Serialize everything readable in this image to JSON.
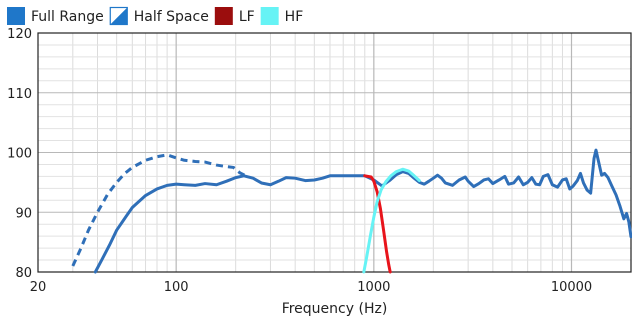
{
  "chart_data": {
    "type": "line",
    "xlabel": "Frequency (Hz)",
    "ylabel": "",
    "xscale": "log",
    "xlim": [
      20,
      20000
    ],
    "ylim": [
      80,
      120
    ],
    "y_ticks": [
      80,
      90,
      100,
      110,
      120
    ],
    "x_tick_labels": [
      {
        "value": 20,
        "label": "20"
      },
      {
        "value": 100,
        "label": "100"
      },
      {
        "value": 1000,
        "label": "1000"
      },
      {
        "value": 10000,
        "label": "10000"
      }
    ],
    "grid": true,
    "legend_position": "top-left",
    "legend": [
      {
        "name": "Full Range",
        "color": "#1f77c9",
        "swatch": "solid"
      },
      {
        "name": "Half Space",
        "color": "#1f77c9",
        "swatch": "half"
      },
      {
        "name": "LF",
        "color": "#9b0d0d",
        "swatch": "solid"
      },
      {
        "name": "HF",
        "color": "#66f3f5",
        "swatch": "solid"
      }
    ],
    "series": [
      {
        "name": "Half Space",
        "color": "#2f6fb8",
        "dashed": true,
        "points": [
          [
            30,
            81
          ],
          [
            33,
            84
          ],
          [
            36,
            87
          ],
          [
            40,
            90
          ],
          [
            45,
            93
          ],
          [
            50,
            95
          ],
          [
            55,
            96.5
          ],
          [
            60,
            97.5
          ],
          [
            70,
            98.7
          ],
          [
            80,
            99.3
          ],
          [
            90,
            99.6
          ],
          [
            100,
            99.1
          ],
          [
            110,
            98.7
          ],
          [
            125,
            98.5
          ],
          [
            140,
            98.4
          ],
          [
            160,
            97.9
          ],
          [
            175,
            97.7
          ],
          [
            195,
            97.5
          ],
          [
            210,
            96.6
          ],
          [
            225,
            96.1
          ]
        ]
      },
      {
        "name": "Full Range",
        "color": "#2f6fb8",
        "dashed": false,
        "points": [
          [
            39,
            80
          ],
          [
            42,
            82
          ],
          [
            46,
            84.5
          ],
          [
            50,
            87
          ],
          [
            55,
            89
          ],
          [
            60,
            90.8
          ],
          [
            70,
            92.8
          ],
          [
            80,
            93.9
          ],
          [
            90,
            94.5
          ],
          [
            100,
            94.7
          ],
          [
            110,
            94.6
          ],
          [
            125,
            94.5
          ],
          [
            140,
            94.8
          ],
          [
            160,
            94.6
          ],
          [
            180,
            95.2
          ],
          [
            200,
            95.8
          ],
          [
            220,
            96.1
          ],
          [
            245,
            95.7
          ],
          [
            270,
            94.9
          ],
          [
            300,
            94.6
          ],
          [
            330,
            95.2
          ],
          [
            360,
            95.8
          ],
          [
            400,
            95.7
          ],
          [
            450,
            95.3
          ],
          [
            500,
            95.4
          ],
          [
            550,
            95.7
          ],
          [
            600,
            96.1
          ],
          [
            700,
            96.1
          ],
          [
            800,
            96.1
          ],
          [
            900,
            96.1
          ],
          [
            1000,
            95.4
          ],
          [
            1100,
            94.4
          ],
          [
            1200,
            95.3
          ],
          [
            1300,
            96.3
          ],
          [
            1400,
            96.8
          ],
          [
            1500,
            96.5
          ],
          [
            1600,
            95.7
          ],
          [
            1700,
            95.0
          ],
          [
            1800,
            94.7
          ],
          [
            1900,
            95.2
          ],
          [
            2000,
            95.7
          ],
          [
            2100,
            96.2
          ],
          [
            2200,
            95.7
          ],
          [
            2300,
            94.9
          ],
          [
            2500,
            94.5
          ],
          [
            2700,
            95.4
          ],
          [
            2900,
            95.9
          ],
          [
            3000,
            95.2
          ],
          [
            3200,
            94.3
          ],
          [
            3400,
            94.8
          ],
          [
            3600,
            95.4
          ],
          [
            3800,
            95.6
          ],
          [
            4000,
            94.8
          ],
          [
            4300,
            95.4
          ],
          [
            4600,
            96.0
          ],
          [
            4800,
            94.7
          ],
          [
            5100,
            94.9
          ],
          [
            5400,
            95.9
          ],
          [
            5700,
            94.6
          ],
          [
            6000,
            95.0
          ],
          [
            6300,
            95.8
          ],
          [
            6600,
            94.7
          ],
          [
            6900,
            94.6
          ],
          [
            7200,
            96.0
          ],
          [
            7600,
            96.3
          ],
          [
            8000,
            94.6
          ],
          [
            8500,
            94.2
          ],
          [
            9000,
            95.4
          ],
          [
            9400,
            95.6
          ],
          [
            9800,
            93.9
          ],
          [
            10200,
            94.4
          ],
          [
            10700,
            95.3
          ],
          [
            11100,
            96.5
          ],
          [
            11500,
            94.9
          ],
          [
            12000,
            93.7
          ],
          [
            12500,
            93.2
          ],
          [
            13000,
            99.0
          ],
          [
            13300,
            100.4
          ],
          [
            13700,
            98.5
          ],
          [
            14200,
            96.2
          ],
          [
            14700,
            96.5
          ],
          [
            15300,
            95.8
          ],
          [
            16000,
            94.4
          ],
          [
            16800,
            92.9
          ],
          [
            17600,
            91.0
          ],
          [
            18400,
            88.9
          ],
          [
            19000,
            89.8
          ],
          [
            19500,
            88.4
          ],
          [
            20000,
            85.9
          ]
        ]
      },
      {
        "name": "LF",
        "color": "#e8141b",
        "dashed": false,
        "points": [
          [
            900,
            96.1
          ],
          [
            970,
            95.9
          ],
          [
            1000,
            95.2
          ],
          [
            1040,
            93.4
          ],
          [
            1080,
            90.6
          ],
          [
            1120,
            87.0
          ],
          [
            1160,
            83.4
          ],
          [
            1190,
            81.2
          ],
          [
            1210,
            80.0
          ]
        ]
      },
      {
        "name": "HF",
        "color": "#66f3f5",
        "dashed": false,
        "points": [
          [
            890,
            80.0
          ],
          [
            920,
            82.5
          ],
          [
            960,
            86.0
          ],
          [
            1000,
            89.2
          ],
          [
            1040,
            91.8
          ],
          [
            1090,
            93.8
          ],
          [
            1150,
            95.1
          ],
          [
            1220,
            96.1
          ],
          [
            1300,
            96.8
          ],
          [
            1400,
            97.2
          ],
          [
            1500,
            96.9
          ],
          [
            1600,
            96.1
          ],
          [
            1700,
            95.3
          ]
        ]
      }
    ]
  }
}
